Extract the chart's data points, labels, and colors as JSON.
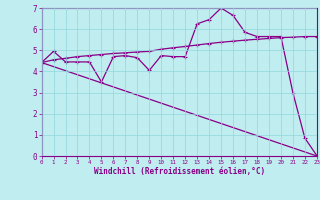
{
  "xlabel": "Windchill (Refroidissement éolien,°C)",
  "xlim": [
    0,
    23
  ],
  "ylim": [
    0,
    7
  ],
  "xticks": [
    0,
    1,
    2,
    3,
    4,
    5,
    6,
    7,
    8,
    9,
    10,
    11,
    12,
    13,
    14,
    15,
    16,
    17,
    18,
    19,
    20,
    21,
    22,
    23
  ],
  "yticks": [
    0,
    1,
    2,
    3,
    4,
    5,
    6,
    7
  ],
  "bg_color": "#c0eef0",
  "grid_color": "#90d8dc",
  "line_color": "#880088",
  "line1_x": [
    0,
    1,
    2,
    3,
    4,
    5,
    6,
    7,
    8,
    9,
    10,
    11,
    12,
    13,
    14,
    15,
    16,
    17,
    18,
    19,
    20,
    21,
    22,
    23
  ],
  "line1_y": [
    4.42,
    4.95,
    4.45,
    4.45,
    4.45,
    3.5,
    4.7,
    4.75,
    4.65,
    4.05,
    4.75,
    4.7,
    4.7,
    6.25,
    6.45,
    7.0,
    6.65,
    5.85,
    5.65,
    5.65,
    5.65,
    3.0,
    0.85,
    0.02
  ],
  "line2_x": [
    0,
    1,
    2,
    3,
    4,
    5,
    6,
    7,
    8,
    9,
    10,
    11,
    12,
    13,
    14,
    15,
    16,
    17,
    18,
    19,
    20,
    21,
    22,
    23
  ],
  "line2_y": [
    4.42,
    4.55,
    4.62,
    4.7,
    4.75,
    4.8,
    4.85,
    4.88,
    4.92,
    4.95,
    5.05,
    5.12,
    5.18,
    5.25,
    5.32,
    5.38,
    5.43,
    5.48,
    5.52,
    5.56,
    5.6,
    5.62,
    5.65,
    5.65
  ],
  "line3_x": [
    0,
    23
  ],
  "line3_y": [
    4.42,
    0.0
  ]
}
